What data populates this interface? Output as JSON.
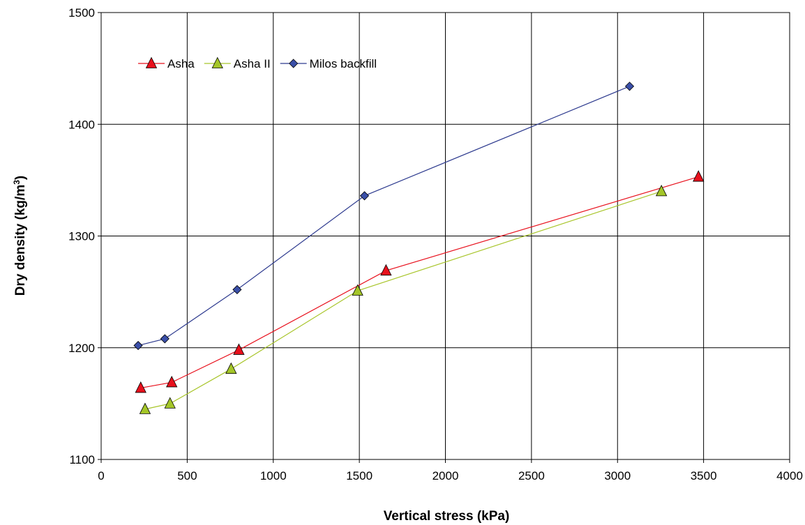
{
  "chart_data": {
    "type": "line",
    "xlabel": "Vertical stress (kPa)",
    "ylabel_main": "Dry density (kg/m",
    "ylabel_sup": "3",
    "ylabel_tail": ")",
    "xlim": [
      0,
      4000
    ],
    "ylim": [
      1100,
      1500
    ],
    "xticks": [
      0,
      500,
      1000,
      1500,
      2000,
      2500,
      3000,
      3500,
      4000
    ],
    "yticks": [
      1100,
      1200,
      1300,
      1400,
      1500
    ],
    "grid": true,
    "legend_position": "top-left",
    "series": [
      {
        "name": "Asha",
        "marker": "triangle",
        "line_color": "#e8101c",
        "marker_fill": "#e8101c",
        "points": [
          [
            230,
            1164
          ],
          [
            410,
            1169
          ],
          [
            800,
            1198
          ],
          [
            1655,
            1269
          ],
          [
            3470,
            1353
          ]
        ]
      },
      {
        "name": "Asha II",
        "marker": "triangle",
        "line_color": "#a8c52a",
        "marker_fill": "#a4c628",
        "points": [
          [
            255,
            1145
          ],
          [
            400,
            1150
          ],
          [
            755,
            1181
          ],
          [
            1490,
            1251
          ],
          [
            3255,
            1340
          ]
        ]
      },
      {
        "name": "Milos backfill",
        "marker": "diamond",
        "line_color": "#2e3b8f",
        "marker_fill": "#3a4fa8",
        "points": [
          [
            215,
            1202
          ],
          [
            370,
            1208
          ],
          [
            790,
            1252
          ],
          [
            1530,
            1336
          ],
          [
            3070,
            1434
          ]
        ]
      }
    ]
  }
}
